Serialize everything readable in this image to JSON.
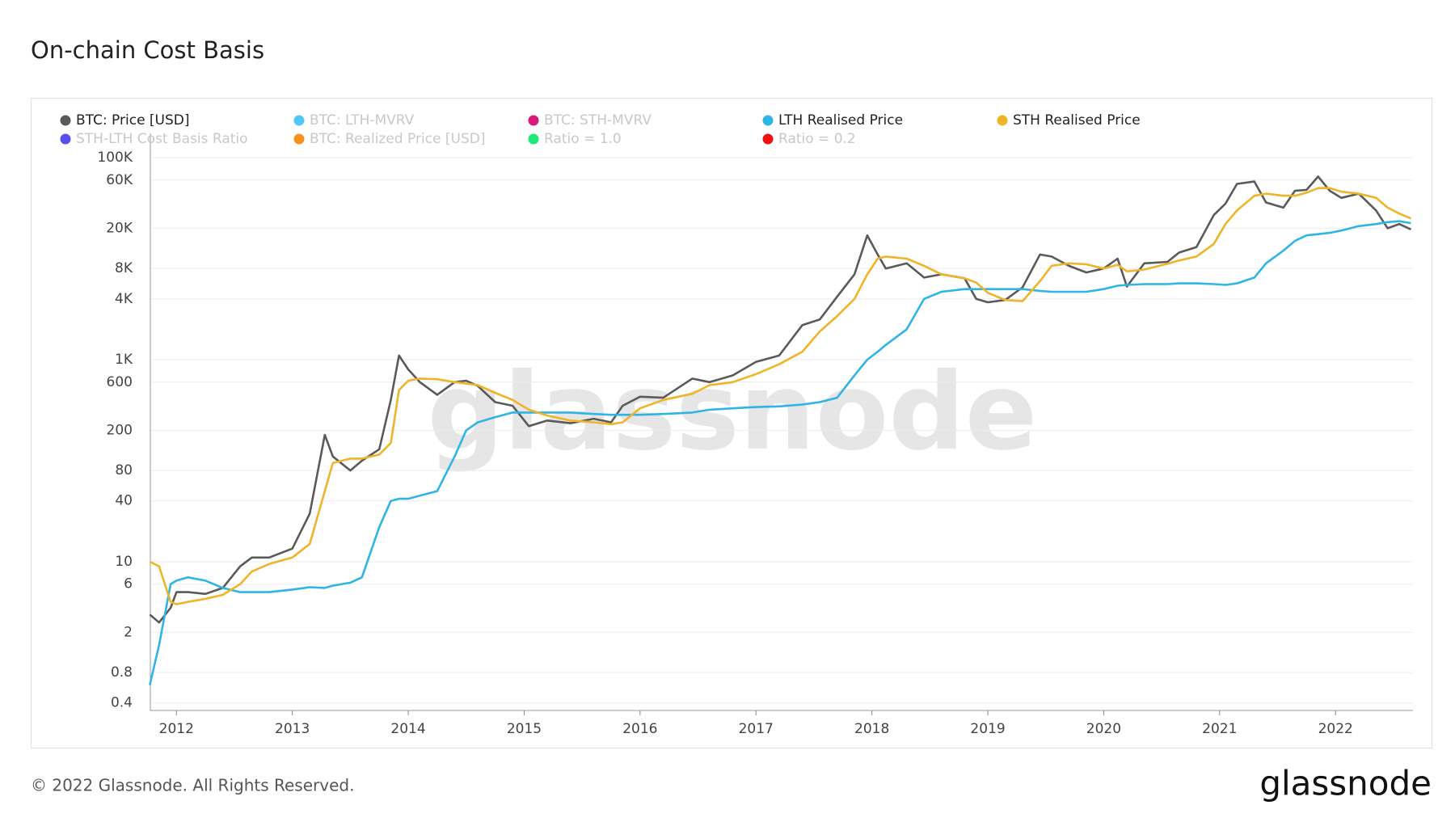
{
  "chart_data": {
    "type": "line",
    "title": "On-chain Cost Basis",
    "watermark": "glassnode",
    "footer": "© 2022 Glassnode. All Rights Reserved.",
    "logo": "glassnode",
    "log_y": true,
    "grid": true,
    "x": [
      2011.77,
      2011.85,
      2011.95,
      2012.0,
      2012.1,
      2012.25,
      2012.4,
      2012.55,
      2012.65,
      2012.8,
      2013.0,
      2013.15,
      2013.28,
      2013.35,
      2013.5,
      2013.6,
      2013.75,
      2013.85,
      2013.92,
      2014.0,
      2014.1,
      2014.25,
      2014.4,
      2014.5,
      2014.6,
      2014.75,
      2014.9,
      2015.04,
      2015.2,
      2015.4,
      2015.6,
      2015.75,
      2015.85,
      2016.0,
      2016.2,
      2016.45,
      2016.6,
      2016.8,
      2017.0,
      2017.2,
      2017.4,
      2017.55,
      2017.7,
      2017.85,
      2017.96,
      2018.05,
      2018.12,
      2018.3,
      2018.45,
      2018.6,
      2018.8,
      2018.9,
      2019.0,
      2019.15,
      2019.3,
      2019.45,
      2019.55,
      2019.7,
      2019.85,
      2020.0,
      2020.12,
      2020.2,
      2020.35,
      2020.55,
      2020.65,
      2020.8,
      2020.95,
      2021.05,
      2021.15,
      2021.3,
      2021.4,
      2021.55,
      2021.65,
      2021.75,
      2021.85,
      2021.95,
      2022.05,
      2022.2,
      2022.35,
      2022.45,
      2022.55,
      2022.65
    ],
    "xlim": [
      2011.775,
      2022.668
    ],
    "xticks": [
      2012,
      2013,
      2014,
      2015,
      2016,
      2017,
      2018,
      2019,
      2020,
      2021,
      2022
    ],
    "ylim": [
      0.337,
      174000
    ],
    "yticks": [
      0.4,
      0.8,
      2,
      6,
      10,
      40,
      80,
      200,
      600,
      {
        "value": 1000,
        "label": "1K"
      },
      {
        "value": 4000,
        "label": "4K"
      },
      {
        "value": 8000,
        "label": "8K"
      },
      {
        "value": 20000,
        "label": "20K"
      },
      {
        "value": 60000,
        "label": "60K"
      },
      {
        "value": 100000,
        "label": "100K"
      }
    ],
    "series": [
      {
        "name": "BTC: Price [USD]",
        "color": "#5a5a5a",
        "visible": true,
        "values": [
          3,
          2.5,
          3.5,
          5,
          5,
          4.8,
          5.5,
          9,
          11,
          11,
          13.5,
          30,
          180,
          110,
          80,
          100,
          130,
          400,
          1100,
          800,
          600,
          450,
          600,
          620,
          550,
          380,
          350,
          220,
          250,
          235,
          260,
          240,
          350,
          430,
          420,
          650,
          600,
          700,
          950,
          1100,
          2200,
          2500,
          4200,
          7000,
          17000,
          11000,
          8000,
          9000,
          6500,
          7000,
          6400,
          4000,
          3700,
          3900,
          5200,
          11000,
          10500,
          8500,
          7300,
          8000,
          10000,
          5300,
          9000,
          9300,
          11500,
          13000,
          27000,
          35000,
          55000,
          58000,
          36000,
          32000,
          47000,
          48000,
          65000,
          47000,
          40000,
          44000,
          30000,
          20000,
          22000,
          19500
        ]
      },
      {
        "name": "BTC: LTH-MVRV",
        "color": "#4fc8f5",
        "visible": false
      },
      {
        "name": "BTC: STH-MVRV",
        "color": "#d6197a",
        "visible": false
      },
      {
        "name": "LTH Realised Price",
        "color": "#2fb4e6",
        "visible": true,
        "values": [
          0.6,
          1.5,
          6,
          6.5,
          7,
          6.5,
          5.5,
          5,
          5,
          5,
          5.3,
          5.6,
          5.5,
          5.8,
          6.2,
          7,
          22,
          40,
          42,
          42,
          45,
          50,
          110,
          200,
          240,
          270,
          300,
          300,
          300,
          300,
          290,
          285,
          285,
          285,
          290,
          300,
          320,
          330,
          340,
          345,
          360,
          380,
          420,
          700,
          1000,
          1200,
          1400,
          2000,
          4000,
          4700,
          5000,
          5000,
          5000,
          5000,
          5000,
          4800,
          4700,
          4700,
          4700,
          5000,
          5400,
          5500,
          5600,
          5600,
          5700,
          5700,
          5600,
          5500,
          5700,
          6500,
          9000,
          12000,
          15000,
          17000,
          17500,
          18000,
          19000,
          21000,
          22000,
          23000,
          23500,
          22500
        ]
      },
      {
        "name": "STH Realised Price",
        "color": "#f0b429",
        "visible": true,
        "values": [
          10,
          9,
          4,
          3.8,
          4,
          4.3,
          4.7,
          6,
          8,
          9.5,
          11,
          15,
          50,
          95,
          105,
          105,
          115,
          150,
          500,
          620,
          650,
          640,
          600,
          580,
          560,
          470,
          400,
          320,
          280,
          250,
          240,
          230,
          240,
          330,
          400,
          460,
          560,
          600,
          720,
          900,
          1200,
          1900,
          2700,
          4000,
          7000,
          10000,
          10500,
          10000,
          8500,
          7000,
          6400,
          5800,
          4600,
          3900,
          3800,
          6000,
          8500,
          9000,
          8800,
          8000,
          8700,
          7500,
          7800,
          8900,
          9600,
          10500,
          14000,
          22000,
          30000,
          42000,
          44000,
          42000,
          42000,
          45000,
          50000,
          50000,
          46000,
          44000,
          40000,
          32000,
          28000,
          25000
        ]
      },
      {
        "name": "STH-LTH Cost Basis Ratio",
        "color": "#5b4ef0",
        "visible": false
      },
      {
        "name": "BTC: Realized Price [USD]",
        "color": "#f7931a",
        "visible": false
      },
      {
        "name": "Ratio = 1.0",
        "color": "#1ee87a",
        "visible": false
      },
      {
        "name": "Ratio = 0.2",
        "color": "#ee1111",
        "visible": false
      }
    ]
  }
}
